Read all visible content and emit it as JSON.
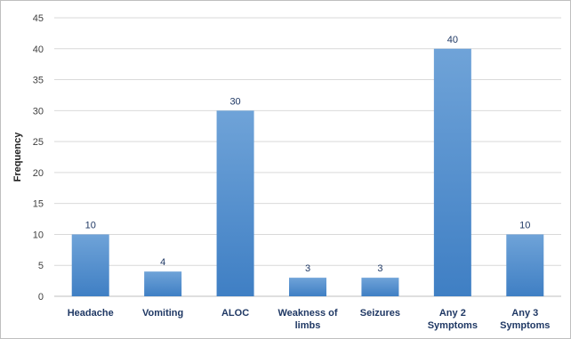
{
  "chart_data": {
    "type": "bar",
    "categories": [
      [
        "Headache"
      ],
      [
        "Vomiting"
      ],
      [
        "ALOC"
      ],
      [
        "Weakness of",
        "limbs"
      ],
      [
        "Seizures"
      ],
      [
        "Any 2",
        "Symptoms"
      ],
      [
        "Any 3",
        "Symptoms"
      ]
    ],
    "values": [
      10,
      4,
      30,
      3,
      3,
      40,
      10
    ],
    "title": "",
    "xlabel": "",
    "ylabel": "Frequency",
    "ylim": [
      0,
      45
    ],
    "yticks": [
      0,
      5,
      10,
      15,
      20,
      25,
      30,
      35,
      40,
      45
    ],
    "grid": true,
    "legend": "none",
    "colors": {
      "bar_top": "#6fa3d8",
      "bar_bottom": "#3f7fc4",
      "gridline": "#d9d9d9",
      "label": "#1f3864"
    }
  }
}
